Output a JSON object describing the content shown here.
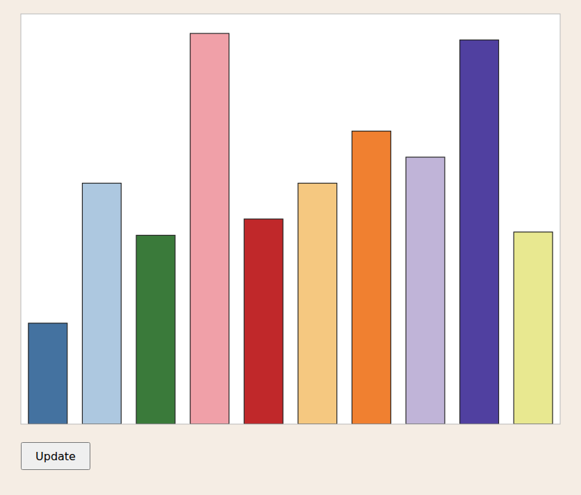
{
  "chart_data": {
    "type": "bar",
    "values": [
      1.55,
      3.7,
      2.9,
      6.0,
      3.15,
      3.7,
      4.5,
      4.1,
      5.9,
      2.95
    ],
    "colors": [
      "#4472a0",
      "#adc8e0",
      "#3a7a3a",
      "#f0a0a8",
      "#c0282a",
      "#f5c880",
      "#f08030",
      "#c0b4d8",
      "#5040a0",
      "#e8e890"
    ],
    "ylim": [
      0,
      6.3
    ],
    "tick_labels": false,
    "annotations": [
      "Update"
    ]
  }
}
